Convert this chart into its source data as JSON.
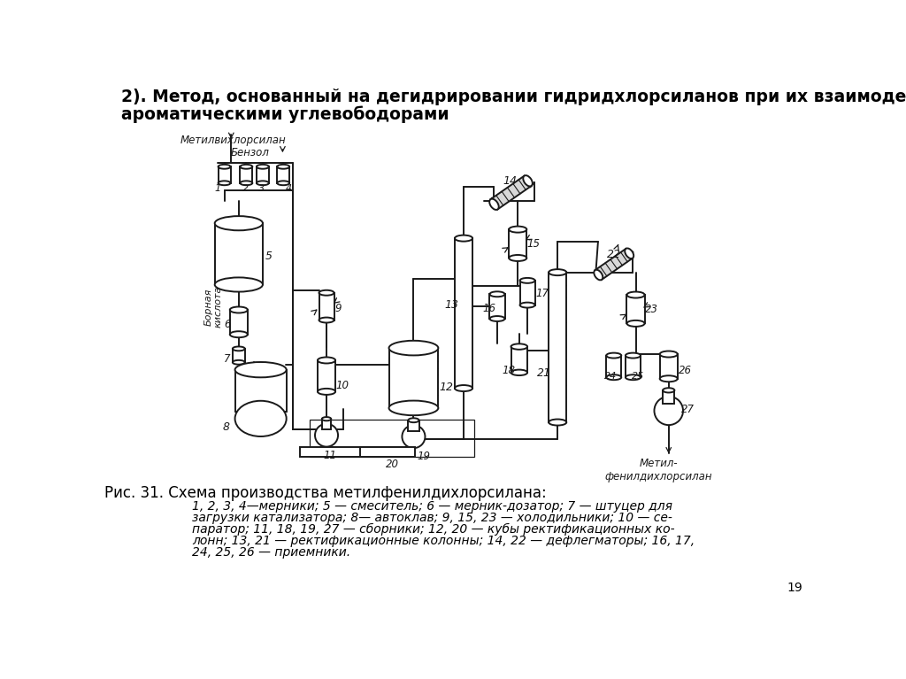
{
  "title_line1": "2). Метод, основанный на дегидрировании гидридхлорсиланов при их взаимодействии с",
  "title_line2": "ароматическими углевободорами",
  "figure_caption": "Рис. 31. Схема производства метилфенилдихлорсилана:",
  "caption_text": "1, 2, 3, 4—мерники; 5 — смеситель; 6 — мерник-дозатор; 7 — штуцер для\nзагрузки катализатора; 8— автоклав; 9, 15, 23 — холодильники; 10 — се-\nпаратор; 11, 18, 19, 27 — сборники; 12, 20 — кубы ректификационных ко-\nлонн; 13, 21 — ректификационные колонны; 14, 22 — дефлегматоры; 16, 17,\n24, 25, 26 — приемники.",
  "label_metilvichlorsilan": "Метилвихлорсилан",
  "label_benzol": "Бензол",
  "label_bornaya": "Борная\nкислота",
  "label_metil": "Метил-\nфенилдихлорсилан",
  "page_number": "19",
  "bg_color": "#ffffff",
  "text_color": "#000000",
  "diagram_color": "#1a1a1a",
  "title_fontsize": 13.5,
  "caption_fontsize": 12,
  "body_fontsize": 10
}
